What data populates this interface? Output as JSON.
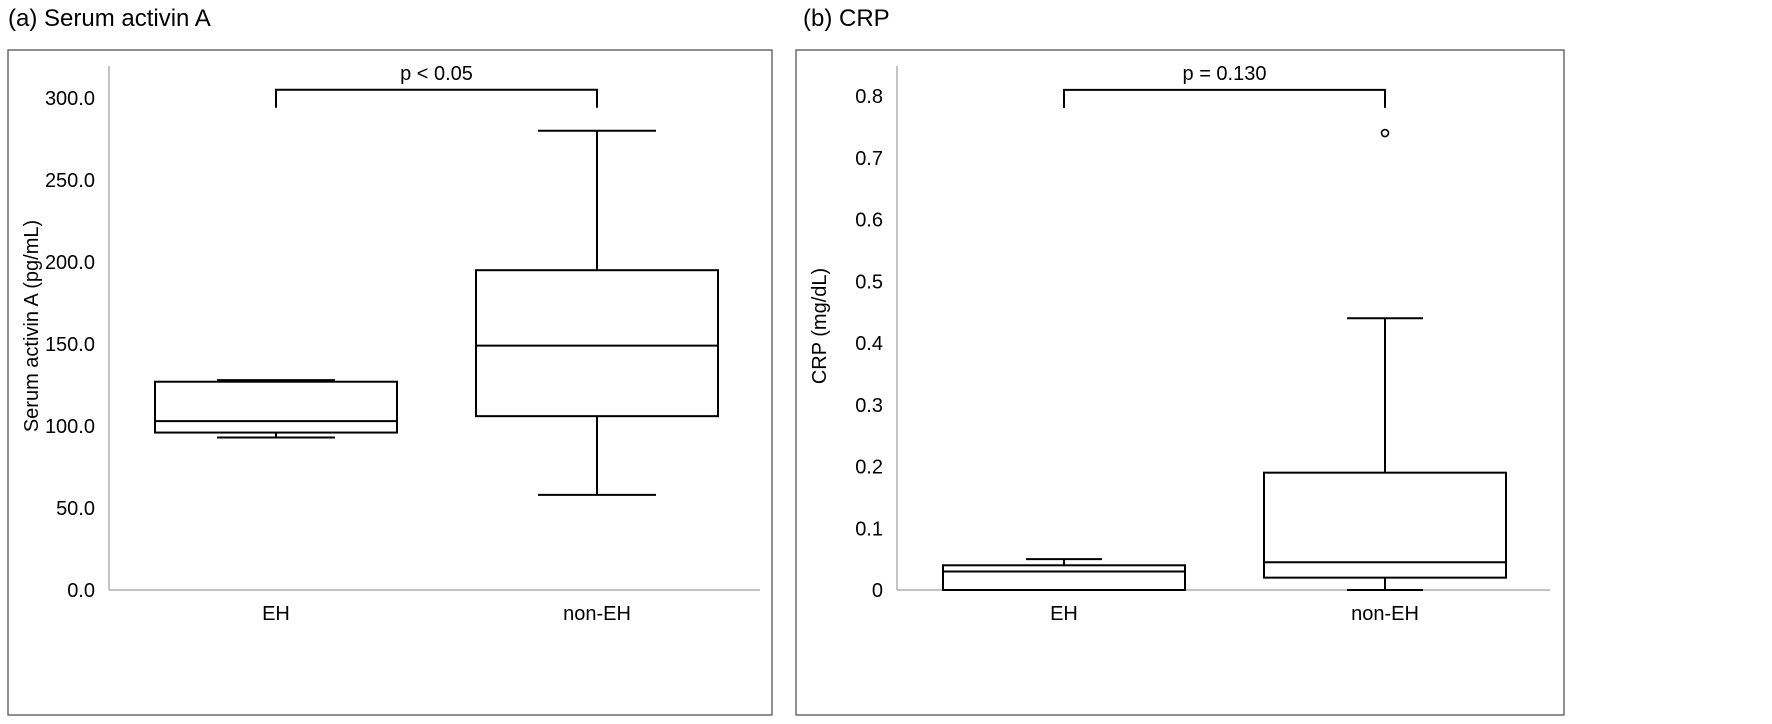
{
  "chart_data": [
    {
      "type": "box",
      "panel_title": "(a) Serum activin A",
      "ylabel": "Serum activin A (pg/mL)",
      "xlabel": "",
      "ylim": [
        0,
        300
      ],
      "ytick_values": [
        0,
        50,
        100,
        150,
        200,
        250,
        300
      ],
      "ytick_labels": [
        "0.0",
        "50.0",
        "100.0",
        "150.0",
        "200.0",
        "250.0",
        "300.0"
      ],
      "categories": [
        "EH",
        "non-EH"
      ],
      "boxes": [
        {
          "category": "EH",
          "whisker_low": 93,
          "q1": 96,
          "median": 103,
          "q3": 127,
          "whisker_high": 128,
          "outliers": []
        },
        {
          "category": "non-EH",
          "whisker_low": 58,
          "q1": 106,
          "median": 149,
          "q3": 195,
          "whisker_high": 280,
          "outliers": []
        }
      ],
      "significance": {
        "from": "EH",
        "to": "non-EH",
        "label": "p < 0.05",
        "bracket_y": 305
      }
    },
    {
      "type": "box",
      "panel_title": "(b) CRP",
      "ylabel": "CRP (mg/dL)",
      "xlabel": "",
      "ylim": [
        0,
        0.8
      ],
      "ytick_values": [
        0,
        0.1,
        0.2,
        0.3,
        0.4,
        0.5,
        0.6,
        0.7,
        0.8
      ],
      "ytick_labels": [
        "0",
        "0.1",
        "0.2",
        "0.3",
        "0.4",
        "0.5",
        "0.6",
        "0.7",
        "0.8"
      ],
      "categories": [
        "EH",
        "non-EH"
      ],
      "boxes": [
        {
          "category": "EH",
          "whisker_low": 0,
          "q1": 0,
          "median": 0.03,
          "q3": 0.04,
          "whisker_high": 0.05,
          "outliers": []
        },
        {
          "category": "non-EH",
          "whisker_low": 0,
          "q1": 0.02,
          "median": 0.045,
          "q3": 0.19,
          "whisker_high": 0.44,
          "outliers": [
            0.74
          ]
        }
      ],
      "significance": {
        "from": "EH",
        "to": "non-EH",
        "label": "p = 0.130",
        "bracket_y": 0.81
      }
    }
  ]
}
